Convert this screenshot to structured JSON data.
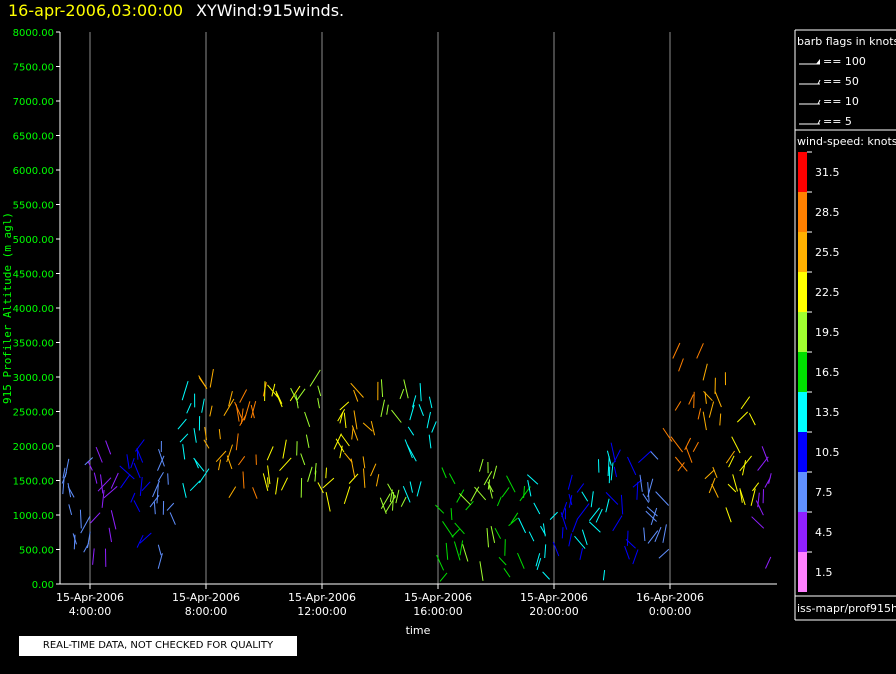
{
  "title": {
    "datetime": "16-apr-2006,03:00:00",
    "product": "XYWind:915winds."
  },
  "notice": "REAL-TIME DATA, NOT CHECKED FOR QUALITY",
  "source": "iss-mapr/prof915h",
  "barb_legend": {
    "title": "barb flags in knots",
    "items": [
      {
        "label": "== 100"
      },
      {
        "label": "== 50"
      },
      {
        "label": "== 10"
      },
      {
        "label": "== 5"
      }
    ]
  },
  "speed_legend": {
    "title": "wind-speed: knots",
    "bins": [
      {
        "label": "31.5",
        "color": "#ff0000"
      },
      {
        "label": "28.5",
        "color": "#ff8000"
      },
      {
        "label": "25.5",
        "color": "#ffb000"
      },
      {
        "label": "22.5",
        "color": "#ffff00"
      },
      {
        "label": "19.5",
        "color": "#a0ff30"
      },
      {
        "label": "16.5",
        "color": "#00e000"
      },
      {
        "label": "13.5",
        "color": "#00ffff"
      },
      {
        "label": "10.5",
        "color": "#0000ff"
      },
      {
        "label": "7.5",
        "color": "#6090ff"
      },
      {
        "label": "4.5",
        "color": "#9020ff"
      },
      {
        "label": "1.5",
        "color": "#ff80ff"
      }
    ]
  },
  "chart_data": {
    "type": "scatter",
    "title": "XYWind:915winds.",
    "xlabel": "time",
    "ylabel": "915 Profiler Altitude (m agl)",
    "ylim": [
      0,
      8000
    ],
    "y_ticks": [
      "0.00",
      "500.00",
      "1000.00",
      "1500.00",
      "2000.00",
      "2500.00",
      "3000.00",
      "3500.00",
      "4000.00",
      "4500.00",
      "5000.00",
      "5500.00",
      "6000.00",
      "6500.00",
      "7000.00",
      "7500.00",
      "8000.00"
    ],
    "x_ticks": [
      {
        "date": "15-Apr-2006",
        "time": "4:00:00"
      },
      {
        "date": "15-Apr-2006",
        "time": "8:00:00"
      },
      {
        "date": "15-Apr-2006",
        "time": "12:00:00"
      },
      {
        "date": "15-Apr-2006",
        "time": "16:00:00"
      },
      {
        "date": "15-Apr-2006",
        "time": "20:00:00"
      },
      {
        "date": "16-Apr-2006",
        "time": "0:00:00"
      }
    ],
    "grid": "vertical",
    "series": [
      {
        "x_hours": [
          1.5,
          2.5,
          3.5,
          4.5,
          5.5,
          6.5
        ],
        "altitude_m": [
          1300,
          1250,
          1150,
          1100,
          1200,
          1050
        ],
        "speed_kt": [
          7.5,
          10.5,
          7.5,
          4.5,
          10.5,
          7.5
        ]
      },
      {
        "x_hours": [
          7.5,
          8.5,
          9.5,
          10.5,
          11.5,
          12.5,
          13.5,
          14.5,
          15.5
        ],
        "altitude_m": [
          1800,
          2000,
          2050,
          1950,
          2000,
          1900,
          1950,
          1850,
          1800
        ],
        "speed_kt": [
          13.5,
          25.5,
          28.5,
          22.5,
          19.5,
          22.5,
          25.5,
          19.5,
          13.5
        ]
      },
      {
        "x_hours": [
          16.5,
          17.5,
          18.5,
          19.5,
          20.5,
          21.5,
          22.5,
          23.5
        ],
        "altitude_m": [
          700,
          800,
          650,
          600,
          700,
          900,
          1000,
          1100
        ],
        "speed_kt": [
          16.5,
          19.5,
          16.5,
          13.5,
          10.5,
          13.5,
          10.5,
          7.5
        ]
      },
      {
        "x_hours": [
          24.5,
          25.5,
          26.5,
          27.5
        ],
        "altitude_m": [
          2400,
          2100,
          1700,
          1000
        ],
        "speed_kt": [
          28.5,
          25.5,
          22.5,
          4.5
        ]
      }
    ]
  }
}
